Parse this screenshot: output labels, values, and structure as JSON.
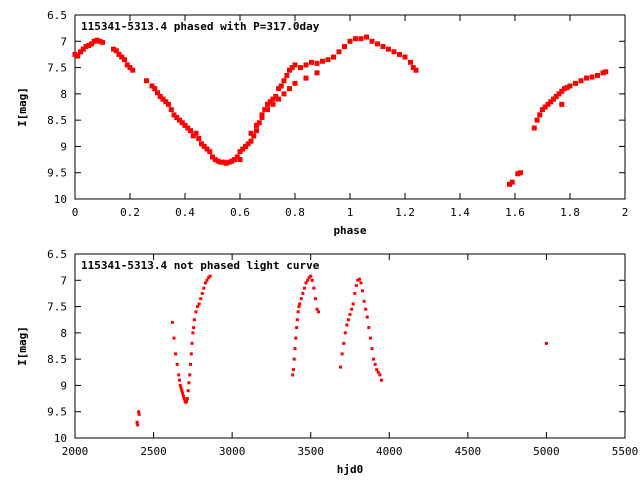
{
  "chart_data": [
    {
      "type": "scatter",
      "title": "115341-5313.4 phased with P=317.0day",
      "xlabel": "phase",
      "ylabel": "I[mag]",
      "xlim": [
        0,
        2
      ],
      "ylim": [
        6.5,
        10
      ],
      "y_inverted": true,
      "grid": false,
      "marker_color": "#ff0000",
      "x_ticks": [
        0,
        0.2,
        0.4,
        0.6,
        0.8,
        1,
        1.2,
        1.4,
        1.6,
        1.8,
        2
      ],
      "y_ticks": [
        6.5,
        7,
        7.5,
        8,
        8.5,
        9,
        9.5,
        10
      ],
      "x_tick_labels": [
        "0",
        "0.2",
        "0.4",
        "0.6",
        "0.8",
        "1",
        "1.2",
        "1.4",
        "1.6",
        "1.8",
        "2"
      ],
      "y_tick_labels": [
        "6.5",
        "7",
        "7.5",
        "8",
        "8.5",
        "9",
        "9.5",
        "10"
      ],
      "series": [
        {
          "x": [
            0.0,
            0.01,
            0.02,
            0.03,
            0.04,
            0.05,
            0.06,
            0.07,
            0.08,
            0.09,
            0.1,
            0.14,
            0.15,
            0.16,
            0.17,
            0.18,
            0.19,
            0.2,
            0.21,
            0.26,
            0.28,
            0.29,
            0.3,
            0.31,
            0.32,
            0.33,
            0.34,
            0.35,
            0.36,
            0.37,
            0.38,
            0.39,
            0.4,
            0.41,
            0.42,
            0.43,
            0.44,
            0.45,
            0.46,
            0.47,
            0.48,
            0.49,
            0.5,
            0.51,
            0.52,
            0.53,
            0.54,
            0.55,
            0.56,
            0.57,
            0.58,
            0.59,
            0.6,
            0.61,
            0.62,
            0.63,
            0.64,
            0.65,
            0.66,
            0.67,
            0.68,
            0.69,
            0.7,
            0.71,
            0.72,
            0.73,
            0.74,
            0.75,
            0.76,
            0.77,
            0.78,
            0.79,
            0.8,
            0.82,
            0.84,
            0.86,
            0.88,
            0.9,
            0.92,
            0.94,
            0.96,
            0.98,
            1.0,
            1.02,
            1.04,
            1.06,
            1.08,
            1.1,
            1.12,
            1.14,
            1.16,
            1.18,
            1.2,
            1.22,
            1.23,
            1.24,
            0.6,
            0.62,
            0.64,
            0.66,
            0.68,
            0.7,
            0.72,
            0.74,
            0.76,
            0.78,
            0.8,
            0.84,
            0.88,
            1.58,
            1.59,
            1.61,
            1.62,
            1.67,
            1.68,
            1.69,
            1.7,
            1.71,
            1.72,
            1.73,
            1.74,
            1.75,
            1.76,
            1.77,
            1.78,
            1.79,
            1.8,
            1.82,
            1.84,
            1.86,
            1.88,
            1.9,
            1.92,
            1.93,
            1.77
          ],
          "y": [
            7.25,
            7.28,
            7.2,
            7.15,
            7.1,
            7.08,
            7.05,
            7.0,
            6.98,
            7.0,
            7.02,
            7.15,
            7.18,
            7.25,
            7.3,
            7.35,
            7.45,
            7.5,
            7.55,
            7.75,
            7.85,
            7.9,
            7.98,
            8.05,
            8.1,
            8.15,
            8.2,
            8.3,
            8.4,
            8.45,
            8.5,
            8.55,
            8.6,
            8.65,
            8.7,
            8.8,
            8.75,
            8.85,
            8.95,
            9.0,
            9.05,
            9.1,
            9.2,
            9.25,
            9.28,
            9.3,
            9.3,
            9.32,
            9.3,
            9.28,
            9.25,
            9.2,
            9.1,
            9.05,
            9.0,
            8.95,
            8.9,
            8.8,
            8.7,
            8.55,
            8.4,
            8.3,
            8.2,
            8.15,
            8.1,
            8.05,
            7.9,
            7.85,
            7.75,
            7.65,
            7.55,
            7.5,
            7.45,
            7.5,
            7.45,
            7.4,
            7.42,
            7.38,
            7.35,
            7.3,
            7.2,
            7.1,
            7.0,
            6.95,
            6.95,
            6.92,
            7.0,
            7.05,
            7.1,
            7.15,
            7.2,
            7.25,
            7.3,
            7.4,
            7.5,
            7.55,
            9.25,
            9.0,
            8.75,
            8.6,
            8.45,
            8.3,
            8.2,
            8.1,
            8.0,
            7.9,
            7.8,
            7.7,
            7.6,
            9.72,
            9.68,
            9.52,
            9.5,
            8.65,
            8.5,
            8.4,
            8.3,
            8.25,
            8.2,
            8.15,
            8.1,
            8.05,
            8.0,
            7.95,
            7.9,
            7.88,
            7.85,
            7.8,
            7.75,
            7.7,
            7.68,
            7.65,
            7.6,
            7.58,
            8.2
          ]
        }
      ]
    },
    {
      "type": "scatter",
      "title": "115341-5313.4 not phased light curve",
      "xlabel": "hjd0",
      "ylabel": "I[mag]",
      "xlim": [
        2000,
        5500
      ],
      "ylim": [
        6.5,
        10
      ],
      "y_inverted": true,
      "grid": false,
      "marker_color": "#ff0000",
      "x_ticks": [
        2000,
        2500,
        3000,
        3500,
        4000,
        4500,
        5000,
        5500
      ],
      "y_ticks": [
        6.5,
        7,
        7.5,
        8,
        8.5,
        9,
        9.5,
        10
      ],
      "x_tick_labels": [
        "2000",
        "2500",
        "3000",
        "3500",
        "4000",
        "4500",
        "5000",
        "5500"
      ],
      "y_tick_labels": [
        "6.5",
        "7",
        "7.5",
        "8",
        "8.5",
        "9",
        "9.5",
        "10"
      ],
      "series": [
        {
          "x": [
            2395,
            2398,
            2405,
            2408,
            2620,
            2630,
            2640,
            2650,
            2660,
            2665,
            2670,
            2675,
            2680,
            2685,
            2690,
            2695,
            2700,
            2705,
            2710,
            2715,
            2720,
            2725,
            2730,
            2735,
            2740,
            2745,
            2750,
            2755,
            2760,
            2770,
            2780,
            2790,
            2800,
            2810,
            2820,
            2830,
            2840,
            2850,
            2860,
            3385,
            3390,
            3395,
            3400,
            3405,
            3410,
            3415,
            3420,
            3425,
            3430,
            3440,
            3450,
            3460,
            3470,
            3480,
            3490,
            3500,
            3510,
            3520,
            3530,
            3540,
            3550,
            3690,
            3700,
            3710,
            3720,
            3730,
            3740,
            3750,
            3760,
            3770,
            3780,
            3790,
            3800,
            3810,
            3820,
            3830,
            3840,
            3850,
            3860,
            3870,
            3880,
            3890,
            3900,
            3910,
            3920,
            3930,
            3940,
            3950,
            5000
          ],
          "y": [
            9.7,
            9.75,
            9.5,
            9.55,
            7.8,
            8.1,
            8.4,
            8.6,
            8.8,
            8.9,
            9.0,
            9.05,
            9.1,
            9.15,
            9.2,
            9.25,
            9.3,
            9.32,
            9.3,
            9.25,
            9.1,
            8.95,
            8.8,
            8.6,
            8.4,
            8.2,
            8.0,
            7.9,
            7.75,
            7.6,
            7.5,
            7.45,
            7.35,
            7.25,
            7.15,
            7.05,
            7.0,
            6.95,
            6.92,
            8.8,
            8.7,
            8.5,
            8.3,
            8.1,
            7.9,
            7.75,
            7.6,
            7.5,
            7.45,
            7.35,
            7.25,
            7.15,
            7.05,
            7.0,
            6.95,
            6.92,
            7.0,
            7.15,
            7.35,
            7.55,
            7.6,
            8.65,
            8.4,
            8.2,
            8.0,
            7.85,
            7.75,
            7.65,
            7.55,
            7.45,
            7.25,
            7.1,
            7.0,
            6.98,
            7.05,
            7.2,
            7.4,
            7.55,
            7.7,
            7.9,
            8.1,
            8.3,
            8.5,
            8.6,
            8.7,
            8.75,
            8.8,
            8.9,
            8.2
          ]
        }
      ]
    }
  ]
}
